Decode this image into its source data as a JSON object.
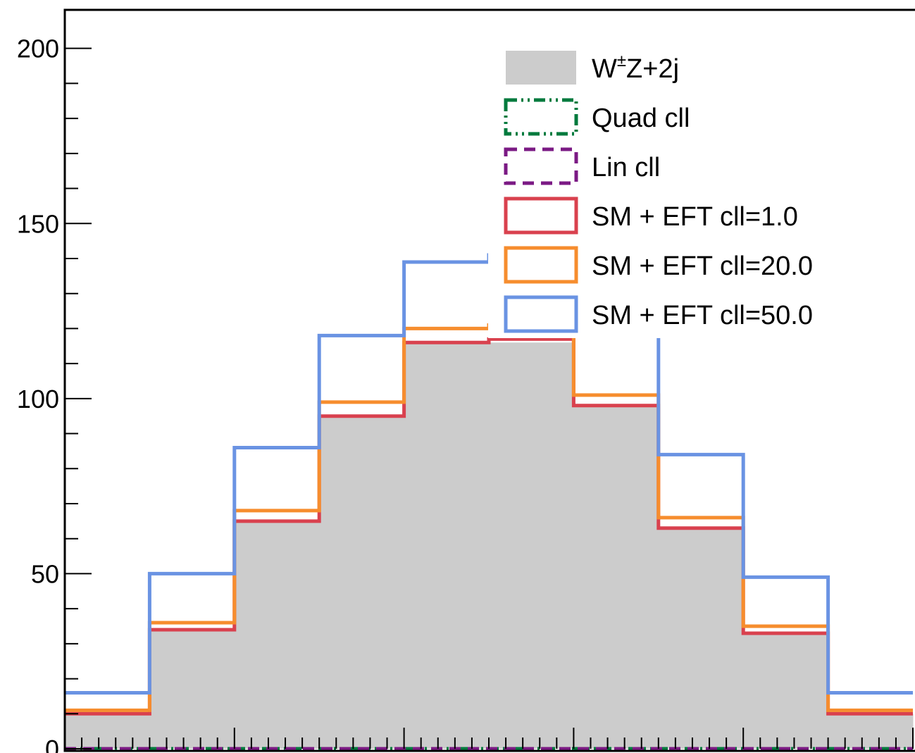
{
  "chart_data": {
    "type": "bar",
    "title": "",
    "xlabel": "",
    "ylabel": "",
    "ylim": [
      0,
      211
    ],
    "y_ticks": [
      "0",
      "50",
      "100",
      "150",
      "200"
    ],
    "bins": 10,
    "background": {
      "name": "W±Z+2j",
      "name_base": "W",
      "name_sup": "±",
      "name_rest": "Z+2j",
      "color": "#cccccc",
      "values": [
        10,
        34,
        65,
        95,
        116,
        116,
        98,
        63,
        33,
        10
      ]
    },
    "series": [
      {
        "name": "Quad cll",
        "color": "#007a3d",
        "style": "dashdot",
        "values": [
          0,
          0,
          0,
          0,
          0,
          0,
          0,
          0,
          0,
          0
        ]
      },
      {
        "name": "Lin cll",
        "color": "#7b1a84",
        "style": "dashed",
        "values": [
          0,
          0,
          0,
          0,
          0,
          0,
          0,
          0,
          0,
          0
        ]
      },
      {
        "name": "SM + EFT cll=1.0",
        "color": "#d9414e",
        "style": "solid",
        "values": [
          10,
          34,
          65,
          95,
          116,
          117,
          98,
          63,
          33,
          10
        ]
      },
      {
        "name": "SM + EFT cll=20.0",
        "color": "#f68d2e",
        "style": "solid",
        "values": [
          11,
          36,
          68,
          99,
          120,
          121,
          101,
          66,
          35,
          11
        ]
      },
      {
        "name": "SM + EFT cll=50.0",
        "color": "#6a93e3",
        "style": "solid",
        "values": [
          16,
          50,
          86,
          118,
          139,
          141,
          119,
          84,
          49,
          16
        ]
      }
    ],
    "legend_position": "top-right",
    "grid": false
  }
}
